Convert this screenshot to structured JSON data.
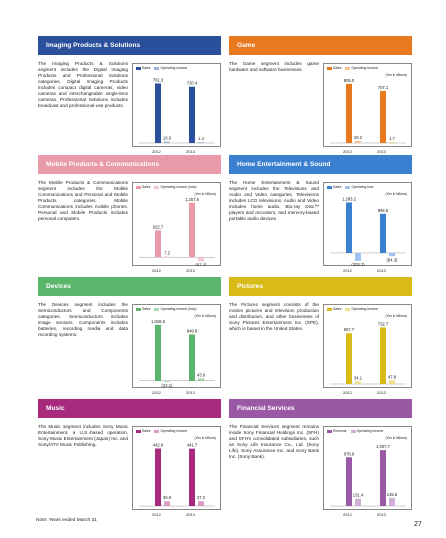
{
  "panels": [
    {
      "id": "imaging",
      "title": "Imaging Products & Solutions",
      "color": "#2a4f9b",
      "secondary": "#9ab4da",
      "text": "The Imaging Products & Solutions segment includes the Digital Imaging Products and Professional Solutions categories. Digital Imaging Products includes compact digital cameras, video cameras and interchangeable single-lens cameras. Professional Solutions includes broadcast and professional-use products.",
      "legend": [
        "Sales",
        "Operating income"
      ],
      "unit": "",
      "years": [
        "2012",
        "2013"
      ],
      "sales": [
        761.3,
        720.4
      ],
      "sales_labels": [
        "761.3",
        "720.4"
      ],
      "oi": [
        18.6,
        1.4
      ],
      "oi_labels": [
        "18.6",
        "1.4"
      ],
      "max": 780,
      "min": 0
    },
    {
      "id": "game",
      "title": "Game",
      "color": "#e8791e",
      "secondary": "#f4c18c",
      "text": "The Game segment includes game hardware and software businesses.",
      "legend": [
        "Sales",
        "Operating income"
      ],
      "unit": "(Yen in billions)",
      "years": [
        "2012",
        "2013"
      ],
      "sales": [
        805.0,
        707.1
      ],
      "sales_labels": [
        "805.0",
        "707.1"
      ],
      "oi": [
        29.2,
        1.7
      ],
      "oi_labels": [
        "29.2",
        "1.7"
      ],
      "max": 830,
      "min": 0
    },
    {
      "id": "mobile",
      "title": "Mobile Products & Communications",
      "color": "#e89aa8",
      "secondary": "#f3c7cf",
      "text": "The Mobile Products & Communications segment includes the Mobile Communications and Personal and Mobile Products categories. Mobile Communications includes mobile phones. Personal and Mobile Products includes personal computers.",
      "legend": [
        "Sales",
        "Operating income (loss)"
      ],
      "unit": "(Yen in billions)",
      "years": [
        "2012",
        "2013"
      ],
      "sales": [
        622.7,
        1257.6
      ],
      "sales_labels": [
        "622.7",
        "1,257.6"
      ],
      "oi": [
        7.2,
        -97.2
      ],
      "oi_labels": [
        "7.2",
        "(97.2)"
      ],
      "max": 1300,
      "min": -110
    },
    {
      "id": "home",
      "title": "Home Entertainment & Sound",
      "color": "#3a7fd0",
      "secondary": "#9fc5ee",
      "text": "The Home Entertainment & Sound segment includes the Televisions and Audio and Video categories. Televisions includes LCD televisions. Audio and Video includes home audio, Blu-ray Disc™ players and recorders, and memory-based portable audio devices.",
      "legend": [
        "Sales",
        "Operating loss"
      ],
      "unit": "(Yen in billions)",
      "years": [
        "2012",
        "2013"
      ],
      "sales": [
        1283.2,
        994.8
      ],
      "sales_labels": [
        "1,283.2",
        "994.8"
      ],
      "oi": [
        -203.2,
        -84.3
      ],
      "oi_labels": [
        "(203.2)",
        "(84.3)"
      ],
      "max": 1320,
      "min": -230
    },
    {
      "id": "devices",
      "title": "Devices",
      "color": "#5bb56b",
      "secondary": "#a9d9b0",
      "text": "The Devices segment includes the Semiconductors and Components categories. Semiconductors includes image sensors. Components includes batteries, recording media and data recording systems.",
      "legend": [
        "Sales",
        "Operating income (loss)"
      ],
      "unit": "(Yen in billions)",
      "years": [
        "2012",
        "2013"
      ],
      "sales": [
        1026.6,
        849.8
      ],
      "sales_labels": [
        "1,026.6",
        "849.8"
      ],
      "oi": [
        -22.1,
        43.9
      ],
      "oi_labels": [
        "(22.1)",
        "43.9"
      ],
      "max": 1060,
      "min": -60
    },
    {
      "id": "pictures",
      "title": "Pictures",
      "color": "#d8bb16",
      "secondary": "#ece08c",
      "text": "The Pictures segment consists of the motion pictures and television production and distribution, and other businesses of Sony Pictures Entertainment Inc. (SPE), which is based in the United States.",
      "legend": [
        "Sales",
        "Operating income"
      ],
      "unit": "(Yen in billions)",
      "years": [
        "2012",
        "2013"
      ],
      "sales": [
        657.7,
        732.7
      ],
      "sales_labels": [
        "657.7",
        "732.7"
      ],
      "oi": [
        34.1,
        47.8
      ],
      "oi_labels": [
        "34.1",
        "47.8"
      ],
      "max": 790,
      "min": 0
    },
    {
      "id": "music",
      "title": "Music",
      "color": "#a82a7d",
      "secondary": "#d99cc5",
      "text": "The Music segment includes Sony Music Entertainment, a U.S.-based operation, Sony Music Entertainment (Japan) Inc. and Sony/ATV Music Publishing.",
      "legend": [
        "Sales",
        "Operating income"
      ],
      "unit": "(Yen in billions)",
      "years": [
        "2012",
        "2013"
      ],
      "sales": [
        442.8,
        441.7
      ],
      "sales_labels": [
        "442.8",
        "441.7"
      ],
      "oi": [
        36.9,
        37.2
      ],
      "oi_labels": [
        "36.9",
        "37.2"
      ],
      "max": 470,
      "min": 0
    },
    {
      "id": "financial",
      "title": "Financial Services",
      "color": "#9a59a4",
      "secondary": "#d0b0d6",
      "text": "The Financial Services segment remains inside Sony Financial Holdings Inc. (SFH) and SFH's consolidated subsidiaries, such as Sony Life Insurance Co., Ltd. (Sony Life), Sony Assurance Inc. and Sony Bank Inc. (Sony Bank).",
      "legend": [
        "Revenue",
        "Operating income"
      ],
      "unit": "(Yen in billions)",
      "years": [
        "2012",
        "2013"
      ],
      "sales": [
        878.9,
        1007.7
      ],
      "sales_labels": [
        "878.9",
        "1,007.7"
      ],
      "oi": [
        131.4,
        145.8
      ],
      "oi_labels": [
        "131.4",
        "145.8"
      ],
      "max": 1100,
      "min": 0
    }
  ],
  "footnote": "Note: Years ended March 31",
  "page_number": "27"
}
